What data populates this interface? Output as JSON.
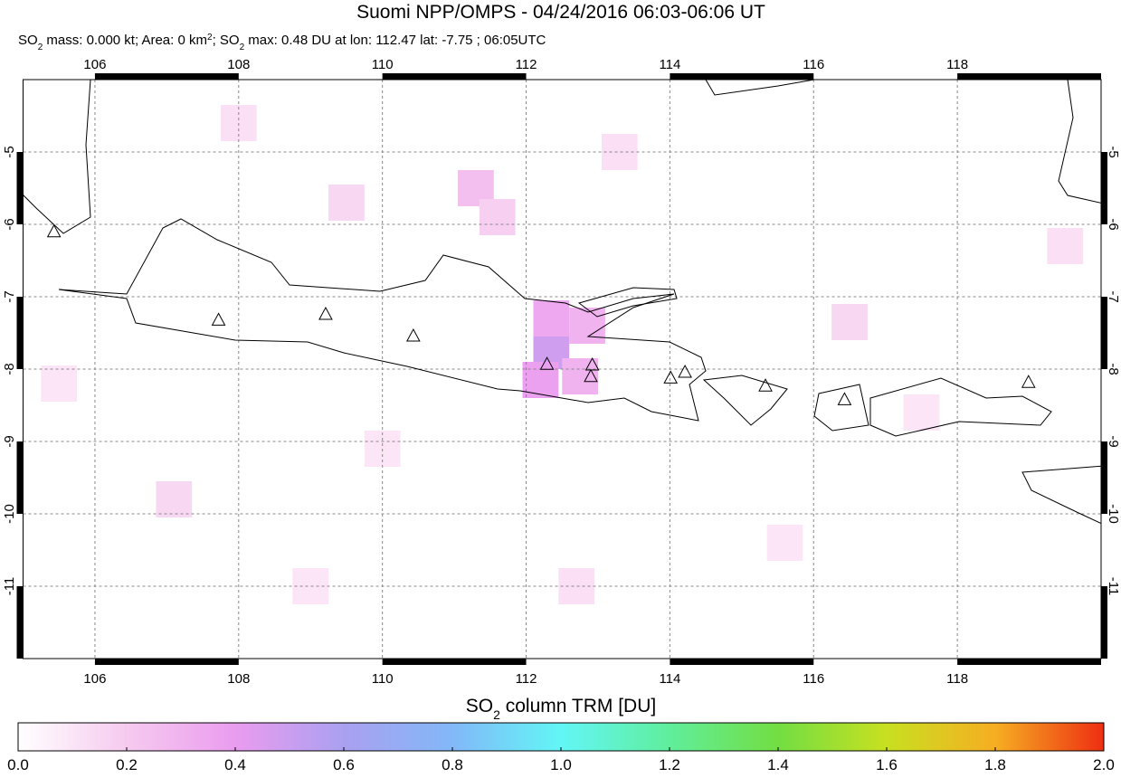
{
  "chart_data": {
    "type": "map",
    "title": "Suomi NPP/OMPS - 04/24/2016 06:03-06:06 UT",
    "subtitle_parts": [
      "SO",
      "2",
      " mass: 0.000 kt; Area: 0 km",
      "2",
      "; SO",
      "2",
      " max: 0.48 DU at lon: 112.47 lat: -7.75 ; 06:05UTC"
    ],
    "xlim": [
      105,
      120
    ],
    "ylim": [
      -12,
      -4
    ],
    "xticks": [
      106,
      108,
      110,
      112,
      114,
      116,
      118
    ],
    "yticks": [
      -5,
      -6,
      -7,
      -8,
      -9,
      -10,
      -11
    ],
    "grid": true,
    "cells": {
      "lon": [
        112.35,
        112.35,
        112.85,
        112.2,
        112.75,
        111.3,
        111.6,
        108.0,
        109.5,
        113.3,
        116.5,
        107.1,
        110.0,
        115.6,
        105.5,
        119.5,
        117.5,
        112.7,
        109.0
      ],
      "lat": [
        -7.75,
        -7.3,
        -7.4,
        -8.15,
        -8.1,
        -5.5,
        -5.9,
        -4.6,
        -5.7,
        -5.0,
        -7.35,
        -9.8,
        -9.1,
        -10.4,
        -8.2,
        -6.3,
        -8.6,
        -11.0,
        -11.0
      ],
      "values": [
        0.48,
        0.35,
        0.3,
        0.38,
        0.3,
        0.25,
        0.18,
        0.12,
        0.15,
        0.12,
        0.15,
        0.15,
        0.1,
        0.1,
        0.1,
        0.12,
        0.1,
        0.12,
        0.1
      ]
    },
    "volcanoes": {
      "lon": [
        105.43,
        107.72,
        109.21,
        110.43,
        112.29,
        112.92,
        112.9,
        114.01,
        114.21,
        115.33,
        116.43,
        118.99
      ],
      "lat": [
        -6.11,
        -7.33,
        -7.25,
        -7.55,
        -7.94,
        -7.95,
        -8.11,
        -8.13,
        -8.05,
        -8.24,
        -8.43,
        -8.19
      ]
    },
    "colorbar": {
      "label_parts": [
        "SO",
        "2",
        " column TRM [DU]"
      ],
      "lim": [
        0,
        2
      ],
      "ticks": [
        {
          "value": 0,
          "label": "0.0"
        },
        {
          "value": 0.2,
          "label": "0.2"
        },
        {
          "value": 0.4,
          "label": "0.4"
        },
        {
          "value": 0.6,
          "label": "0.6"
        },
        {
          "value": 0.8,
          "label": "0.8"
        },
        {
          "value": 1.0,
          "label": "1.0"
        },
        {
          "value": 1.2,
          "label": "1.2"
        },
        {
          "value": 1.4,
          "label": "1.4"
        },
        {
          "value": 1.6,
          "label": "1.6"
        },
        {
          "value": 1.8,
          "label": "1.8"
        },
        {
          "value": 2.0,
          "label": "2.0"
        }
      ],
      "colors": [
        "#ffffff",
        "#f6caef",
        "#ea9cef",
        "#aaa0f0",
        "#82b8f8",
        "#62f6f6",
        "#60ee9c",
        "#72de42",
        "#c8e020",
        "#f6ae22",
        "#ee2e12"
      ]
    }
  }
}
